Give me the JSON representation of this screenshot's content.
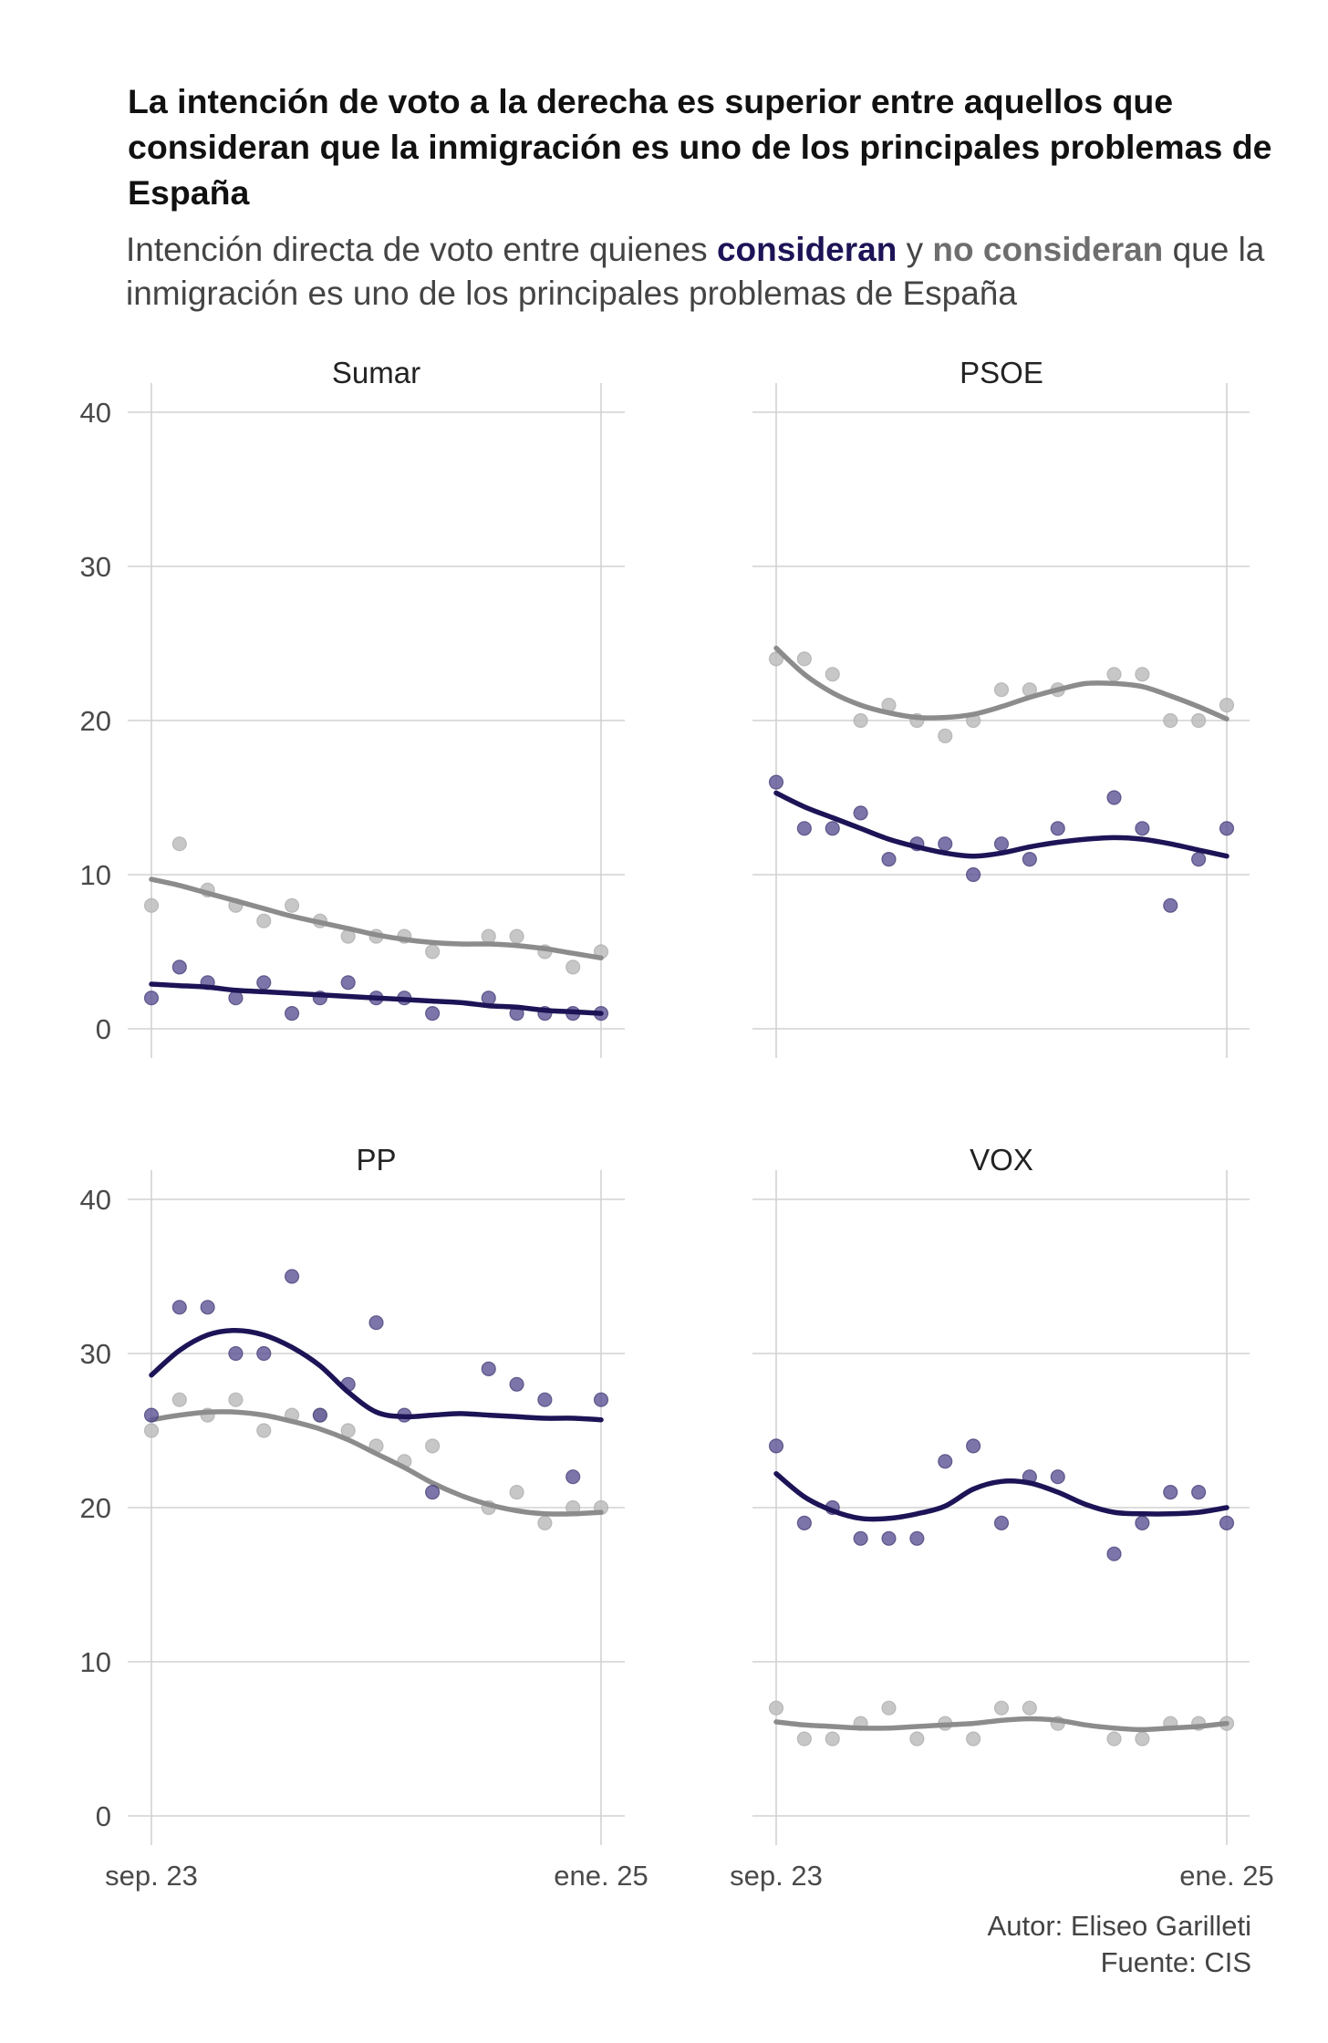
{
  "header": {
    "title": "La intención de voto a la derecha es superior entre aquellos que consideran que la inmigración es uno de los principales problemas de España",
    "subtitle_pre": "Intención directa de voto entre quienes ",
    "subtitle_consideran": "consideran",
    "subtitle_mid": " y ",
    "subtitle_no_consideran": "no consideran",
    "subtitle_post": " que la inmigración es uno de los principales problemas de España"
  },
  "caption": {
    "author": "Autor: Eliseo Garilleti",
    "source": "Fuente: CIS"
  },
  "colors": {
    "consideran": "#1c1456",
    "consideran_points": "#5b5394",
    "no_consideran": "#8c8c8c",
    "no_consideran_points": "#bdbdbd",
    "grid": "#d2d2d2"
  },
  "chart_data": [
    {
      "type": "scatter",
      "panel": "Sumar",
      "x_tick_labels": [
        "sep. 23",
        "ene. 25"
      ],
      "y_ticks": [
        0,
        10,
        20,
        30,
        40
      ],
      "ylim": [
        0,
        40
      ],
      "grid": true,
      "series": [
        {
          "name": "consideran",
          "points": [
            2,
            4,
            3,
            2,
            3,
            1,
            2,
            3,
            2,
            2,
            1,
            null,
            2,
            1,
            1,
            1,
            1
          ],
          "trend": [
            2.9,
            2.8,
            2.7,
            2.5,
            2.4,
            2.3,
            2.2,
            2.1,
            2.0,
            1.9,
            1.8,
            1.7,
            1.5,
            1.4,
            1.2,
            1.1,
            1.0
          ]
        },
        {
          "name": "no consideran",
          "points": [
            8,
            12,
            9,
            8,
            7,
            8,
            7,
            6,
            6,
            6,
            5,
            null,
            6,
            6,
            5,
            4,
            5
          ],
          "trend": [
            9.7,
            9.3,
            8.8,
            8.3,
            7.8,
            7.3,
            6.9,
            6.5,
            6.1,
            5.8,
            5.6,
            5.5,
            5.5,
            5.4,
            5.2,
            4.9,
            4.6
          ]
        }
      ]
    },
    {
      "type": "scatter",
      "panel": "PSOE",
      "x_tick_labels": [
        "sep. 23",
        "ene. 25"
      ],
      "y_ticks": [
        0,
        10,
        20,
        30,
        40
      ],
      "ylim": [
        0,
        40
      ],
      "grid": true,
      "series": [
        {
          "name": "consideran",
          "points": [
            16,
            13,
            13,
            14,
            11,
            12,
            12,
            10,
            12,
            11,
            13,
            null,
            15,
            13,
            8,
            11,
            13
          ],
          "trend": [
            15.3,
            14.4,
            13.7,
            13.0,
            12.3,
            11.8,
            11.4,
            11.2,
            11.4,
            11.8,
            12.1,
            12.3,
            12.4,
            12.3,
            12.0,
            11.6,
            11.2
          ]
        },
        {
          "name": "no consideran",
          "points": [
            24,
            24,
            23,
            20,
            21,
            20,
            19,
            20,
            22,
            22,
            22,
            null,
            23,
            23,
            20,
            20,
            21
          ],
          "trend": [
            24.7,
            23.0,
            21.8,
            21.0,
            20.5,
            20.2,
            20.2,
            20.4,
            20.9,
            21.5,
            22.0,
            22.4,
            22.4,
            22.2,
            21.6,
            20.9,
            20.1
          ]
        }
      ]
    },
    {
      "type": "scatter",
      "panel": "PP",
      "x_tick_labels": [
        "sep. 23",
        "ene. 25"
      ],
      "y_ticks": [
        0,
        10,
        20,
        30,
        40
      ],
      "ylim": [
        0,
        40
      ],
      "grid": true,
      "series": [
        {
          "name": "consideran",
          "points": [
            26,
            33,
            33,
            30,
            30,
            35,
            26,
            28,
            32,
            26,
            21,
            null,
            29,
            28,
            27,
            22,
            27
          ],
          "trend": [
            28.6,
            30.2,
            31.2,
            31.5,
            31.2,
            30.4,
            29.2,
            27.5,
            26.2,
            25.9,
            26.0,
            26.1,
            26.0,
            25.9,
            25.8,
            25.8,
            25.7
          ]
        },
        {
          "name": "no consideran",
          "points": [
            25,
            27,
            26,
            27,
            25,
            26,
            26,
            25,
            24,
            23,
            24,
            null,
            20,
            21,
            19,
            20,
            20
          ],
          "trend": [
            25.7,
            26.0,
            26.2,
            26.2,
            26.0,
            25.6,
            25.1,
            24.4,
            23.5,
            22.6,
            21.6,
            20.8,
            20.2,
            19.8,
            19.6,
            19.6,
            19.7
          ]
        }
      ]
    },
    {
      "type": "scatter",
      "panel": "VOX",
      "x_tick_labels": [
        "sep. 23",
        "ene. 25"
      ],
      "y_ticks": [
        0,
        10,
        20,
        30,
        40
      ],
      "ylim": [
        0,
        40
      ],
      "grid": true,
      "series": [
        {
          "name": "consideran",
          "points": [
            24,
            19,
            20,
            18,
            18,
            18,
            23,
            24,
            19,
            22,
            22,
            null,
            17,
            19,
            21,
            21,
            19
          ],
          "trend": [
            22.2,
            20.7,
            19.8,
            19.3,
            19.3,
            19.6,
            20.1,
            21.2,
            21.7,
            21.6,
            21.0,
            20.2,
            19.7,
            19.6,
            19.6,
            19.7,
            20.0
          ]
        },
        {
          "name": "no consideran",
          "points": [
            7,
            5,
            5,
            6,
            7,
            5,
            6,
            5,
            7,
            7,
            6,
            null,
            5,
            5,
            6,
            6,
            6
          ],
          "trend": [
            6.1,
            5.9,
            5.8,
            5.7,
            5.7,
            5.8,
            5.9,
            6.0,
            6.2,
            6.3,
            6.2,
            5.9,
            5.7,
            5.6,
            5.7,
            5.8,
            6.0
          ]
        }
      ]
    }
  ]
}
